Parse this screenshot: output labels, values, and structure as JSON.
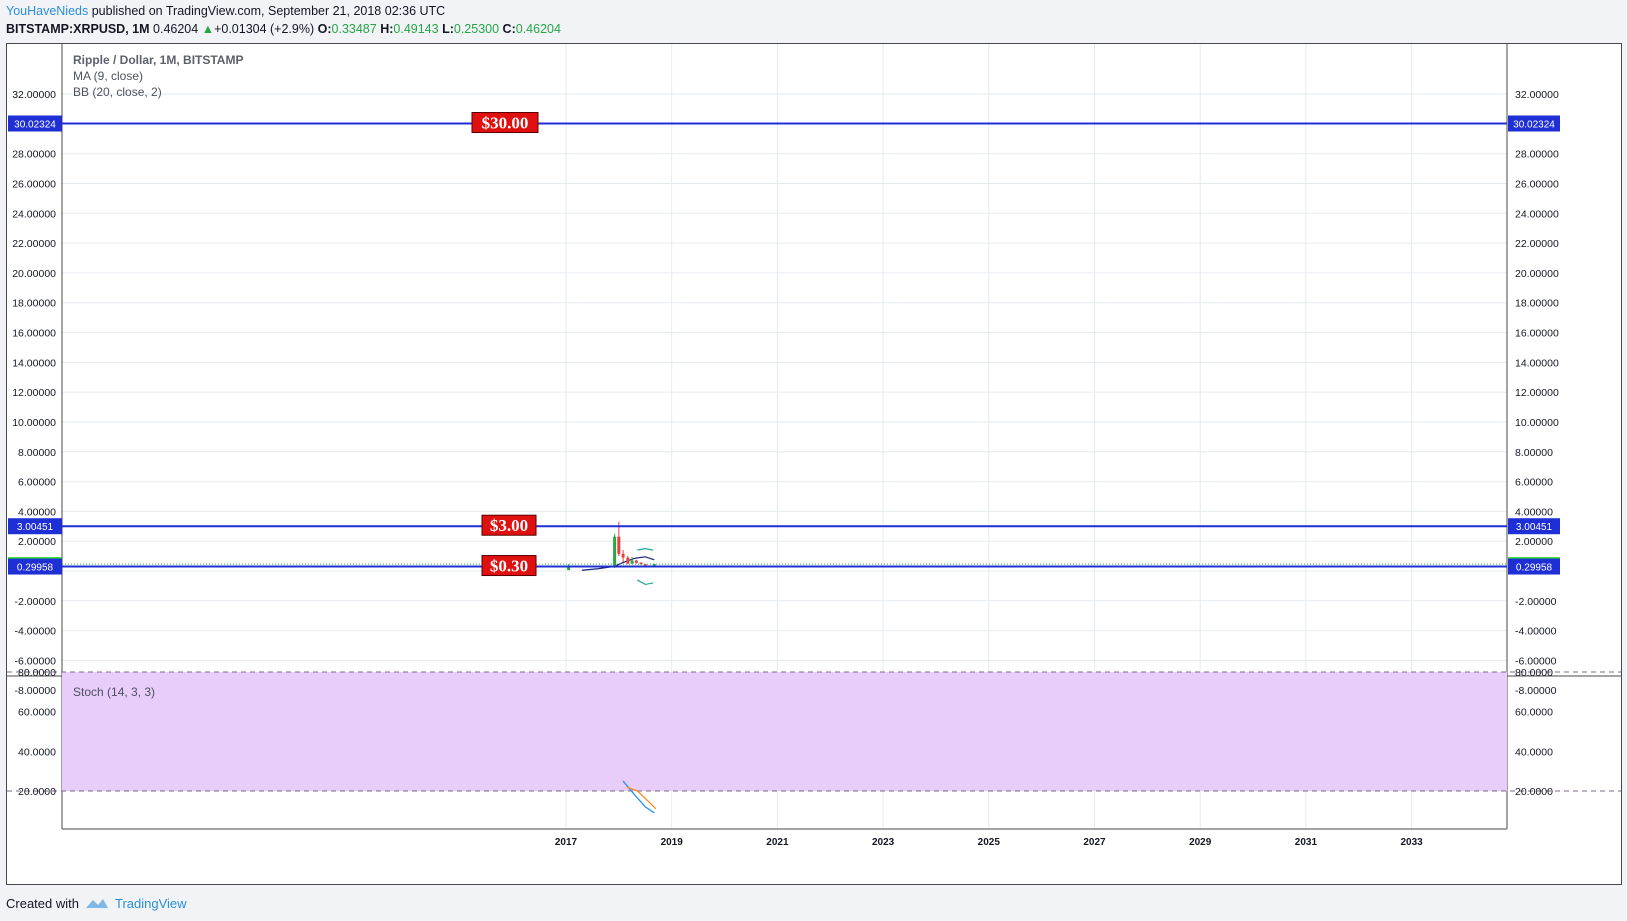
{
  "header": {
    "author": "YouHaveNieds",
    "published_text": "published on TradingView.com, September 21, 2018 02:36 UTC",
    "symbol": "BITSTAMP:XRPUSD, 1M",
    "price": "0.46204",
    "change_arrow": "▲",
    "change": "+0.01304 (+2.9%)",
    "open_label": "O:",
    "open": "0.33487",
    "high_label": "H:",
    "high": "0.49143",
    "low_label": "L:",
    "low": "0.25300",
    "close_label": "C:",
    "close": "0.46204"
  },
  "legend": {
    "title": "Ripple / Dollar, 1M, BITSTAMP",
    "ma": "MA (9, close)",
    "bb": "BB (20, close, 2)",
    "stoch": "Stoch (14, 3, 3)"
  },
  "footer": {
    "created_with": "Created with",
    "brand": "TradingView"
  },
  "colors": {
    "level_line": "#1f2fd6",
    "label_red": "#e01010",
    "stoch_band": "#e8ccfa",
    "price_green": "#27e027",
    "candle_up": "#26a645",
    "candle_down": "#e04040"
  },
  "chart_data": [
    {
      "type": "candlestick",
      "title": "Ripple / Dollar, 1M, BITSTAMP",
      "x_ticks": [
        "2017",
        "2019",
        "2021",
        "2023",
        "2025",
        "2027",
        "2029",
        "2031",
        "2033"
      ],
      "ylim": [
        -9,
        34
      ],
      "y_ticks": [
        32,
        30,
        28,
        26,
        24,
        22,
        20,
        18,
        16,
        14,
        12,
        10,
        8,
        6,
        4,
        2,
        0,
        -2,
        -4,
        -6,
        -8
      ],
      "y_tick_labels": [
        "32.00000",
        "",
        "28.00000",
        "26.00000",
        "24.00000",
        "22.00000",
        "20.00000",
        "18.00000",
        "16.00000",
        "14.00000",
        "12.00000",
        "10.00000",
        "8.00000",
        "6.00000",
        "4.00000",
        "2.00000",
        "",
        "-2.00000",
        "-4.00000",
        "-6.00000",
        "-8.00000"
      ],
      "horizontal_levels": [
        {
          "value": 30.02324,
          "axis_label": "30.02324",
          "annotation": "$30.00"
        },
        {
          "value": 3.00451,
          "axis_label": "3.00451",
          "annotation": "$3.00"
        },
        {
          "value": 0.29958,
          "axis_label": "0.29958",
          "annotation": "$0.30"
        }
      ],
      "last_price": {
        "value": 0.46204,
        "axis_label": "0.46204"
      },
      "candles": [
        {
          "date": "2017.05",
          "open": 0.06,
          "high": 0.45,
          "low": 0.06,
          "close": 0.33
        },
        {
          "date": "2017.92",
          "open": 0.25,
          "high": 2.5,
          "low": 0.2,
          "close": 2.3
        },
        {
          "date": "2018.00",
          "open": 2.3,
          "high": 3.3,
          "low": 1.0,
          "close": 1.15
        },
        {
          "date": "2018.08",
          "open": 1.15,
          "high": 1.4,
          "low": 0.6,
          "close": 0.9
        },
        {
          "date": "2018.17",
          "open": 0.9,
          "high": 1.0,
          "low": 0.45,
          "close": 0.5
        },
        {
          "date": "2018.25",
          "open": 0.5,
          "high": 0.95,
          "low": 0.45,
          "close": 0.7
        },
        {
          "date": "2018.33",
          "open": 0.7,
          "high": 0.75,
          "low": 0.5,
          "close": 0.55
        },
        {
          "date": "2018.42",
          "open": 0.55,
          "high": 0.6,
          "low": 0.42,
          "close": 0.45
        },
        {
          "date": "2018.50",
          "open": 0.45,
          "high": 0.48,
          "low": 0.3,
          "close": 0.34
        },
        {
          "date": "2018.58",
          "open": 0.34,
          "high": 0.38,
          "low": 0.27,
          "close": 0.3
        },
        {
          "date": "2018.67",
          "open": 0.33487,
          "high": 0.49143,
          "low": 0.253,
          "close": 0.46204
        }
      ],
      "ma_9": [
        {
          "date": 2017.3,
          "value": 0.05
        },
        {
          "date": 2017.6,
          "value": 0.15
        },
        {
          "date": 2017.9,
          "value": 0.3
        },
        {
          "date": 2018.1,
          "value": 0.6
        },
        {
          "date": 2018.3,
          "value": 0.85
        },
        {
          "date": 2018.5,
          "value": 0.95
        },
        {
          "date": 2018.67,
          "value": 0.75
        }
      ],
      "bb_upper": [
        {
          "date": 2018.35,
          "value": 1.4
        },
        {
          "date": 2018.5,
          "value": 1.5
        },
        {
          "date": 2018.65,
          "value": 1.4
        }
      ],
      "bb_lower": [
        {
          "date": 2018.35,
          "value": -0.6
        },
        {
          "date": 2018.5,
          "value": -0.9
        },
        {
          "date": 2018.65,
          "value": -0.8
        }
      ]
    },
    {
      "type": "line",
      "title": "Stoch (14, 3, 3)",
      "ylim": [
        5,
        82
      ],
      "y_ticks": [
        80,
        60,
        40,
        20
      ],
      "y_tick_labels": [
        "80.0000",
        "60.0000",
        "40.0000",
        "20.0000"
      ],
      "band": [
        20,
        80
      ],
      "series": [
        {
          "key": "k",
          "color": "#2196f3",
          "points": [
            {
              "date": 2018.08,
              "value": 25
            },
            {
              "date": 2018.3,
              "value": 18
            },
            {
              "date": 2018.5,
              "value": 12
            },
            {
              "date": 2018.67,
              "value": 9
            }
          ]
        },
        {
          "key": "d",
          "color": "#ff8a1f",
          "points": [
            {
              "date": 2018.15,
              "value": 22
            },
            {
              "date": 2018.35,
              "value": 20
            },
            {
              "date": 2018.55,
              "value": 15
            },
            {
              "date": 2018.7,
              "value": 11
            }
          ]
        }
      ]
    }
  ]
}
